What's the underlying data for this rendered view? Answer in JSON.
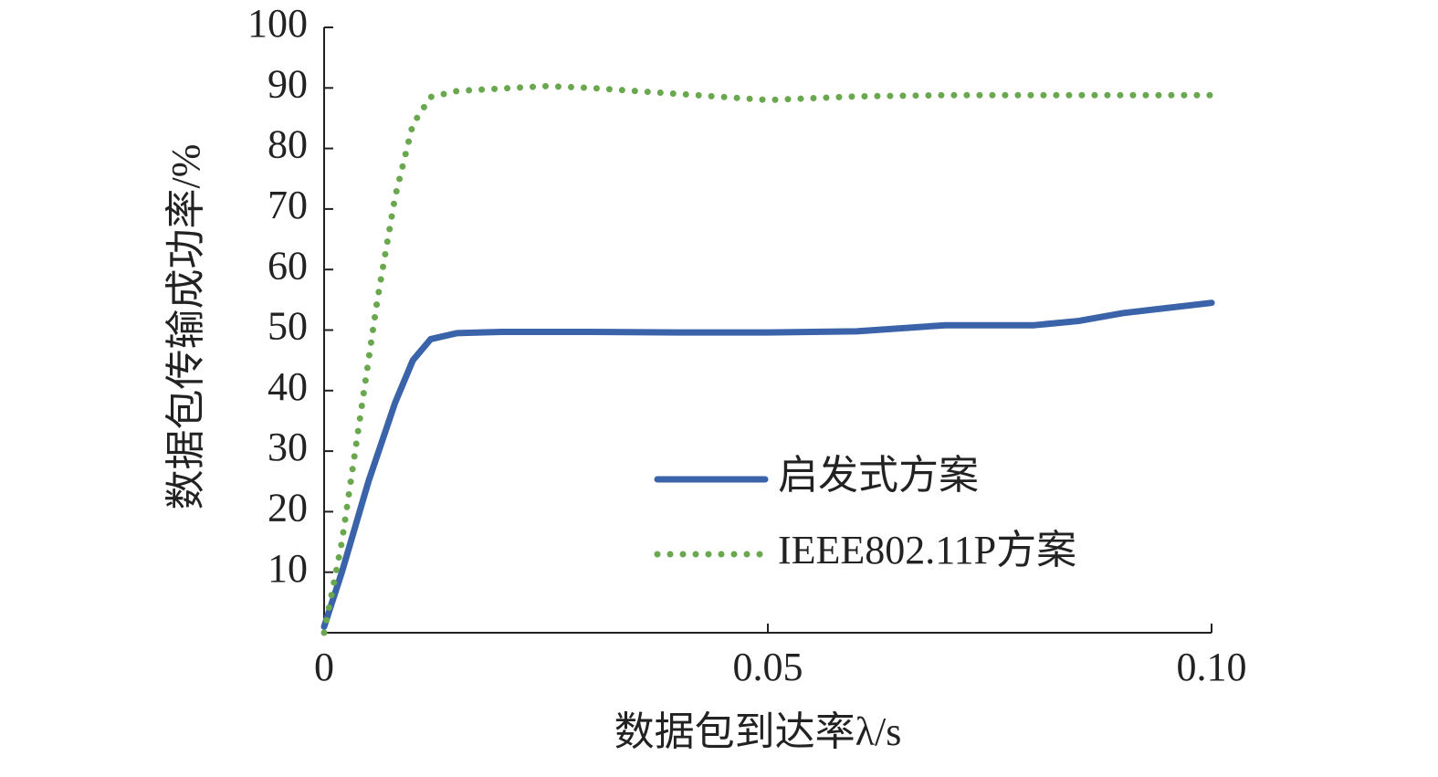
{
  "chart_data": {
    "type": "line",
    "x_label": "数据包到达率λ/s",
    "y_label": "数据包传输成功率/%",
    "xlim": [
      0,
      0.1
    ],
    "xticks": [
      0,
      0.05,
      {
        "value": 0.1,
        "label": "0.10"
      }
    ],
    "ylim": [
      0,
      100
    ],
    "yticks": [
      10,
      20,
      30,
      40,
      50,
      60,
      70,
      80,
      90,
      100
    ],
    "legend": "lower right",
    "series": [
      {
        "name": "启发式方案",
        "color": "#3b63a9",
        "style": "solid",
        "x": [
          0,
          0.002,
          0.005,
          0.008,
          0.01,
          0.012,
          0.015,
          0.02,
          0.03,
          0.04,
          0.05,
          0.06,
          0.07,
          0.08,
          0.085,
          0.09,
          0.1
        ],
        "values": [
          1,
          10,
          25,
          38,
          45,
          48.5,
          49.5,
          49.7,
          49.7,
          49.6,
          49.6,
          49.8,
          50.8,
          50.8,
          51.5,
          52.8,
          54.5
        ]
      },
      {
        "name": "IEEE802.11P方案",
        "color": "#6aa84f",
        "style": "dotted",
        "x": [
          0,
          0.002,
          0.004,
          0.006,
          0.008,
          0.01,
          0.012,
          0.015,
          0.025,
          0.03,
          0.04,
          0.05,
          0.06,
          0.07,
          0.08,
          0.09,
          0.1
        ],
        "values": [
          0,
          15,
          35,
          55,
          72,
          84,
          88.5,
          89.5,
          90.3,
          90,
          89,
          88,
          88.6,
          88.8,
          88.8,
          88.8,
          88.8
        ]
      }
    ]
  }
}
